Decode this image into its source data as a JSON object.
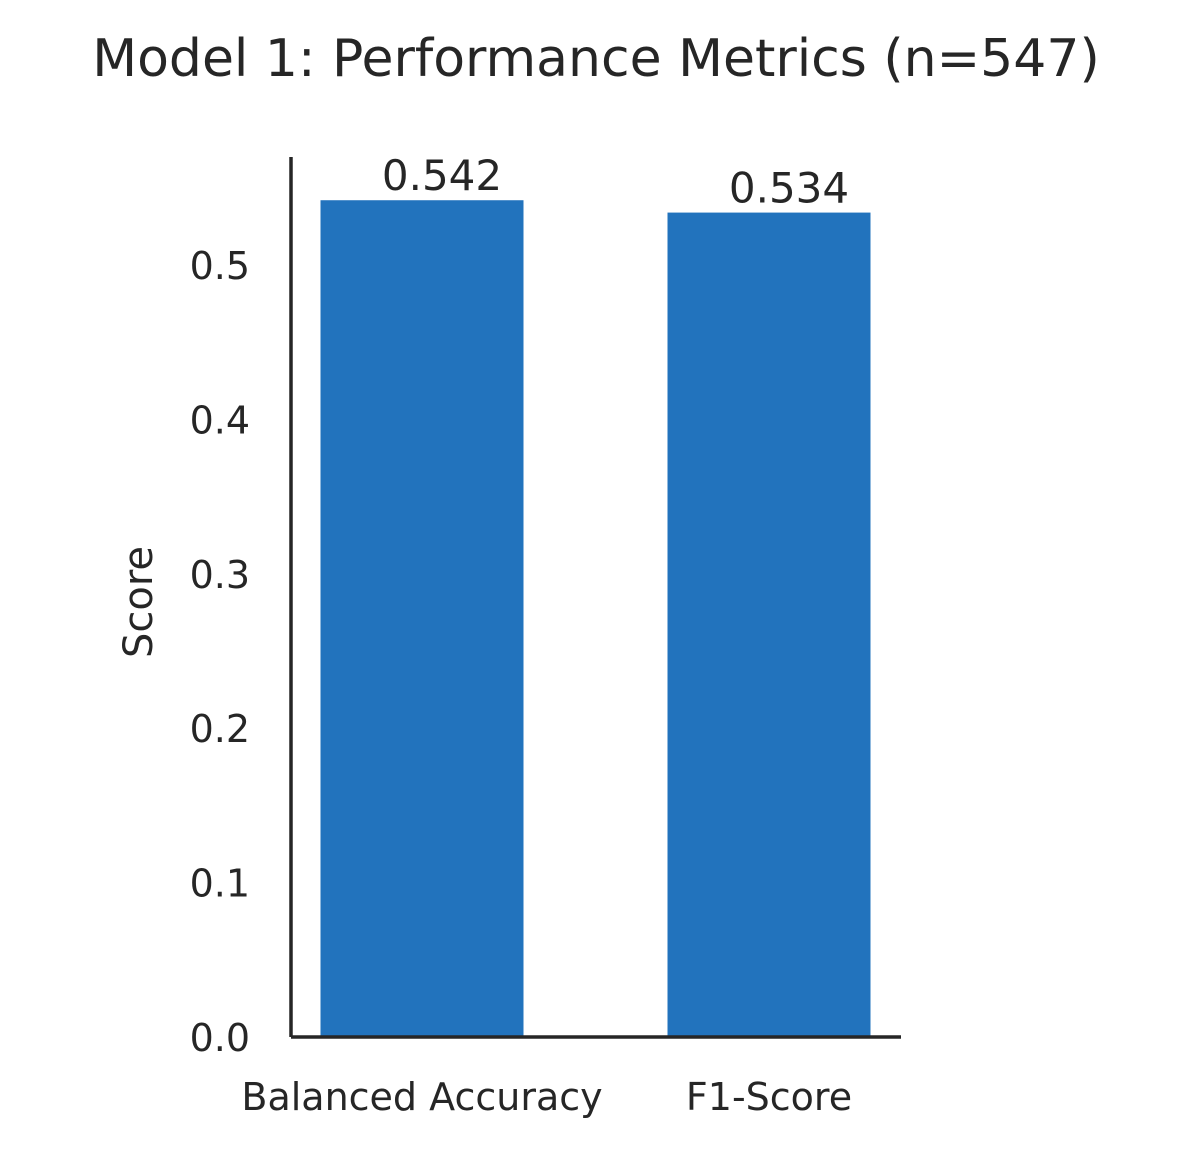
{
  "chart_data": {
    "type": "bar",
    "title": "Model 1: Performance Metrics (n=547)",
    "xlabel": "",
    "ylabel": "Score",
    "categories": [
      "Balanced Accuracy",
      "F1-Score"
    ],
    "values": [
      0.542,
      0.534
    ],
    "data_labels": [
      "0.542",
      "0.534"
    ],
    "y_ticks": [
      0.0,
      0.1,
      0.2,
      0.3,
      0.4,
      0.5
    ],
    "y_tick_labels": [
      "0.0",
      "0.1",
      "0.2",
      "0.3",
      "0.4",
      "0.5"
    ],
    "ylim": [
      0,
      0.57
    ],
    "grid": false,
    "legend": "none",
    "bar_color": "#2273bd"
  }
}
